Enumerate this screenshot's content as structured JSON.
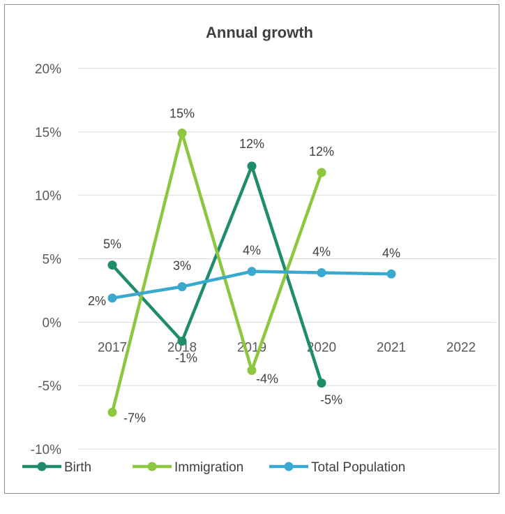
{
  "chart_data": {
    "type": "line",
    "title": "Annual growth",
    "categories": [
      "2017",
      "2018",
      "2019",
      "2020",
      "2021",
      "2022"
    ],
    "y_ticks": [
      "20%",
      "15%",
      "10%",
      "5%",
      "0%",
      "-5%",
      "-10%"
    ],
    "ylim": [
      -10,
      20
    ],
    "grid": true,
    "legend_position": "bottom",
    "series": [
      {
        "name": "Birth",
        "color": "#1f8c6b",
        "values": [
          4.5,
          -1.5,
          12.3,
          -4.8,
          null,
          null
        ],
        "labels": [
          "5%",
          "-1%",
          "12%",
          "-5%",
          "",
          ""
        ]
      },
      {
        "name": "Immigration",
        "color": "#8dc63f",
        "values": [
          -7.1,
          14.9,
          -3.8,
          11.8,
          null,
          null
        ],
        "labels": [
          "-7%",
          "15%",
          "-4%",
          "12%",
          "",
          ""
        ]
      },
      {
        "name": "Total Population",
        "color": "#3aa9d0",
        "values": [
          1.9,
          2.8,
          4.0,
          3.9,
          3.8,
          null
        ],
        "labels": [
          "2%",
          "3%",
          "4%",
          "4%",
          "4%",
          ""
        ]
      }
    ]
  }
}
